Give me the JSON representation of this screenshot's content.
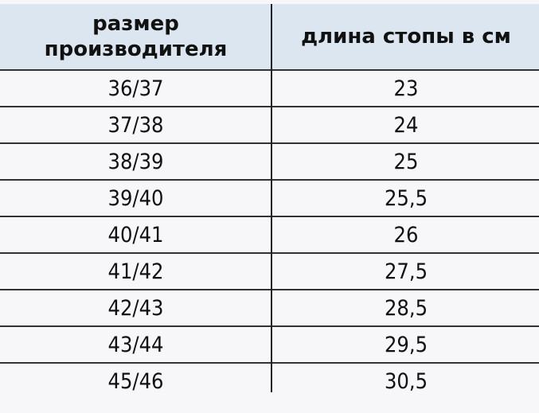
{
  "table": {
    "headers": [
      "размер производителя",
      "длина стопы в см"
    ],
    "header_bg": "#dce6f1",
    "rows": [
      [
        "36/37",
        "23"
      ],
      [
        "37/38",
        "24"
      ],
      [
        "38/39",
        "25"
      ],
      [
        "39/40",
        "25,5"
      ],
      [
        "40/41",
        "26"
      ],
      [
        "41/42",
        "27,5"
      ],
      [
        "42/43",
        "28,5"
      ],
      [
        "43/44",
        "29,5"
      ],
      [
        "45/46",
        "30,5"
      ]
    ]
  }
}
